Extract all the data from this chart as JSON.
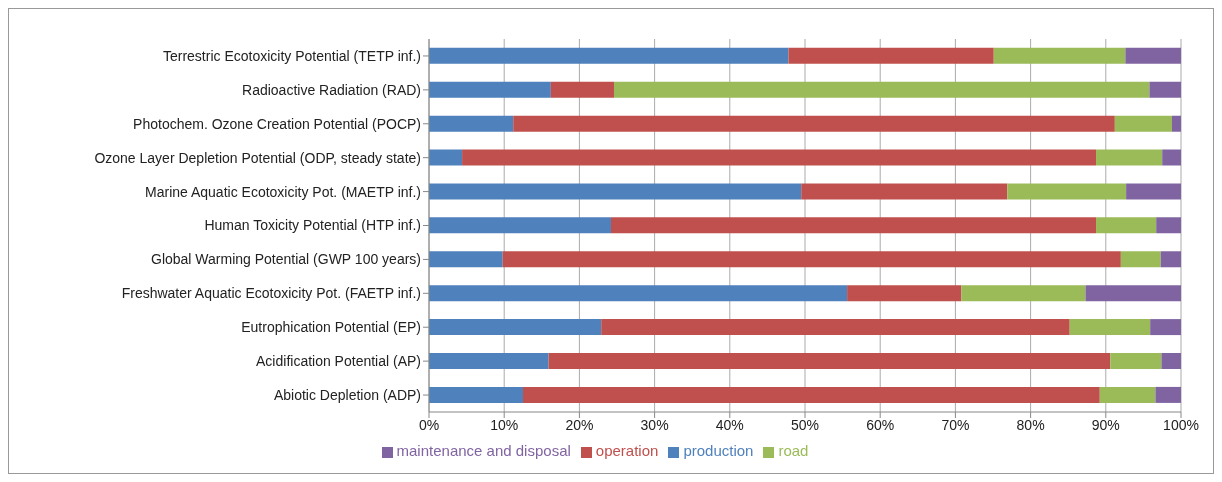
{
  "chart_data": {
    "type": "bar",
    "orientation": "horizontal",
    "stacked": true,
    "categories": [
      "Terrestric Ecotoxicity Potential (TETP inf.)",
      "Radioactive Radiation (RAD)",
      "Photochem. Ozone Creation  Potential (POCP)",
      "Ozone Layer Depletion Potential (ODP, steady state)",
      "Marine Aquatic Ecotoxicity Pot. (MAETP inf.)",
      "Human Toxicity Potential (HTP inf.)",
      "Global Warming Potential (GWP 100 years)",
      "Freshwater Aquatic Ecotoxicity Pot. (FAETP inf.)",
      "Eutrophication Potential (EP)",
      "Acidification Potential (AP)",
      "Abiotic Depletion (ADP)"
    ],
    "series": [
      {
        "name": "production",
        "color": "#4f81bd",
        "values": [
          47.8,
          16.2,
          11.2,
          4.4,
          49.5,
          24.2,
          9.8,
          55.6,
          22.9,
          15.9,
          12.5
        ]
      },
      {
        "name": "operation",
        "color": "#c0504d",
        "values": [
          27.3,
          8.4,
          80.0,
          84.3,
          27.4,
          64.5,
          82.2,
          15.2,
          62.3,
          74.7,
          76.7
        ]
      },
      {
        "name": "road",
        "color": "#9bbb59",
        "values": [
          17.5,
          71.2,
          7.6,
          8.8,
          15.8,
          8.0,
          5.3,
          16.5,
          10.7,
          6.8,
          7.4
        ]
      },
      {
        "name": "maintenance and disposal",
        "color": "#8064a2",
        "values": [
          7.4,
          4.2,
          1.2,
          2.5,
          7.3,
          3.3,
          2.7,
          12.7,
          4.1,
          2.6,
          3.4
        ]
      }
    ],
    "xlim": [
      0,
      100
    ],
    "xticks": [
      {
        "value": 0,
        "label": "0%"
      },
      {
        "value": 10,
        "label": "10%"
      },
      {
        "value": 20,
        "label": "20%"
      },
      {
        "value": 30,
        "label": "30%"
      },
      {
        "value": 40,
        "label": "40%"
      },
      {
        "value": 50,
        "label": "50%"
      },
      {
        "value": 60,
        "label": "60%"
      },
      {
        "value": 70,
        "label": "70%"
      },
      {
        "value": 80,
        "label": "80%"
      },
      {
        "value": 90,
        "label": "90%"
      },
      {
        "value": 100,
        "label": "100%"
      }
    ],
    "grid": "x",
    "legend": "bottom"
  }
}
